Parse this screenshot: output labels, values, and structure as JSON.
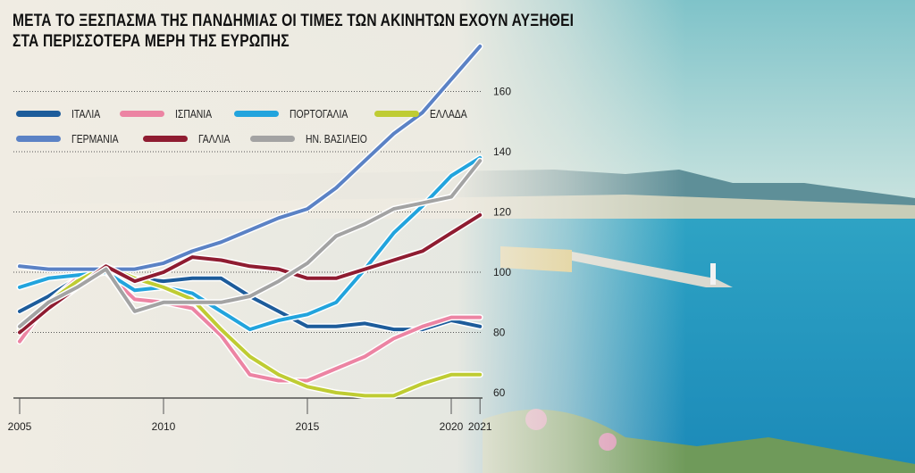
{
  "title_lines": [
    "ΜΕΤΑ ΤΟ ΞΕΣΠΑΣΜΑ ΤΗΣ ΠΑΝΔΗΜΙΑΣ ΟΙ ΤΙΜΕΣ ΤΩΝ ΑΚΙΝΗΤΩΝ ΕΧΟΥΝ ΑΥΞΗΘΕΙ",
    "ΣΤΑ ΠΕΡΙΣΣΟΤΕΡΑ ΜΕΡΗ ΤΗΣ  ΕΥΡΩΠΗΣ"
  ],
  "chart_data": {
    "type": "line",
    "title": "ΜΕΤΑ ΤΟ ΞΕΣΠΑΣΜΑ ΤΗΣ ΠΑΝΔΗΜΙΑΣ ΟΙ ΤΙΜΕΣ ΤΩΝ ΑΚΙΝΗΤΩΝ ΕΧΟΥΝ ΑΥΞΗΘΕΙ ΣΤΑ ΠΕΡΙΣΣΟΤΕΡΑ ΜΕΡΗ ΤΗΣ  ΕΥΡΩΠΗΣ",
    "x": [
      2005,
      2006,
      2007,
      2008,
      2009,
      2010,
      2011,
      2012,
      2013,
      2014,
      2015,
      2016,
      2017,
      2018,
      2019,
      2020,
      2021
    ],
    "x_ticks": [
      "2005",
      "2010",
      "2015",
      "2020",
      "2021"
    ],
    "y_ticks": [
      "60",
      "80",
      "100",
      "120",
      "140",
      "160"
    ],
    "xlim": [
      2005,
      2021
    ],
    "ylim": [
      60,
      175
    ],
    "grid": "horizontal dotted",
    "legend_placement": "top-left",
    "series": [
      {
        "name": "ΙΤΑΛΙΑ",
        "color": "#1d5c9b",
        "values": [
          87,
          92,
          98,
          101,
          98,
          97,
          98,
          98,
          92,
          87,
          82,
          82,
          83,
          81,
          81,
          84,
          82
        ]
      },
      {
        "name": "ΙΣΠΑΝΙΑ",
        "color": "#ec84a3",
        "values": [
          77,
          90,
          98,
          100,
          91,
          90,
          88,
          79,
          66,
          64,
          64,
          68,
          72,
          78,
          82,
          85,
          85
        ]
      },
      {
        "name": "ΠΟΡΤΟΓΑΛΙΑ",
        "color": "#22a4dd",
        "values": [
          95,
          98,
          99,
          100,
          94,
          95,
          93,
          87,
          81,
          84,
          86,
          90,
          101,
          113,
          122,
          132,
          138
        ]
      },
      {
        "name": "ΕΛΛΑΔΑ",
        "color": "#bfcc33",
        "values": [
          81,
          90,
          97,
          102,
          98,
          95,
          91,
          81,
          72,
          66,
          62,
          60,
          59,
          59,
          63,
          66,
          66
        ]
      },
      {
        "name": "ΓΕΡΜΑΝΙΑ",
        "color": "#5b82c5",
        "values": [
          102,
          101,
          101,
          101,
          101,
          103,
          107,
          110,
          114,
          118,
          121,
          128,
          137,
          146,
          153,
          164,
          175
        ]
      },
      {
        "name": "ΓΑΛΛΙΑ",
        "color": "#8f1c31",
        "values": [
          80,
          88,
          95,
          102,
          97,
          100,
          105,
          104,
          102,
          101,
          98,
          98,
          101,
          104,
          107,
          113,
          119
        ]
      },
      {
        "name": "ΗΝ. ΒΑΣΙΛΕΙΟ",
        "color": "#a3a3a3",
        "values": [
          82,
          90,
          95,
          101,
          87,
          90,
          90,
          90,
          92,
          97,
          103,
          112,
          116,
          121,
          123,
          125,
          137
        ]
      }
    ]
  }
}
